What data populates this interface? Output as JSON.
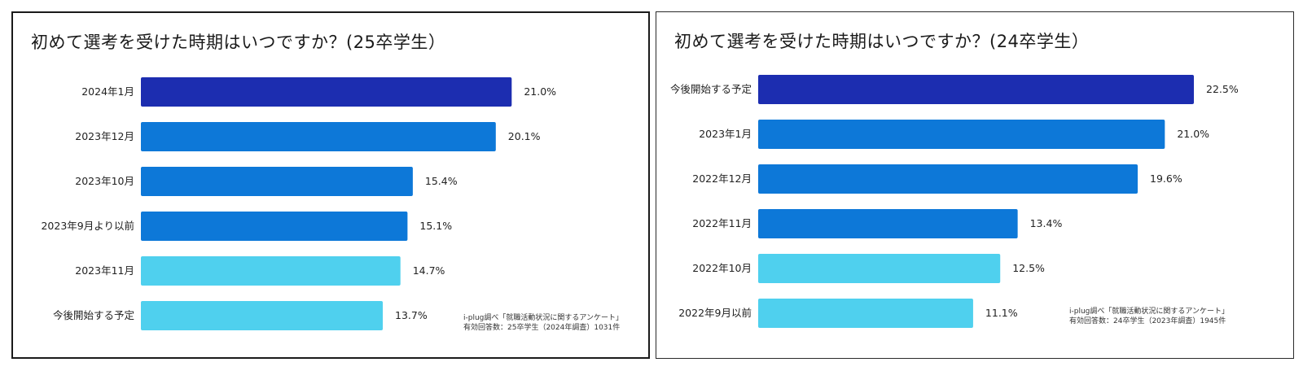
{
  "chart_data": [
    {
      "type": "bar",
      "orientation": "horizontal",
      "title": "初めて選考を受けた時期はいつですか？(25卒学生）",
      "categories": [
        "2024年1月",
        "2023年12月",
        "2023年10月",
        "2023年9月より以前",
        "2023年11月",
        "今後開始する予定"
      ],
      "values": [
        21.0,
        20.1,
        15.4,
        15.1,
        14.7,
        13.7
      ],
      "value_labels": [
        "21.0%",
        "20.1%",
        "15.4%",
        "15.1%",
        "14.7%",
        "13.7%"
      ],
      "bar_colors": [
        "#1c2db0",
        "#0d78d8",
        "#0d78d8",
        "#0d78d8",
        "#4fd0ee",
        "#4fd0ee"
      ],
      "unit": "%",
      "xlim": [
        0,
        22
      ],
      "source_line1": "i-plug調べ「就職活動状況に関するアンケート」",
      "source_line2": "有効回答数：25卒学生（2024年調査）1031件"
    },
    {
      "type": "bar",
      "orientation": "horizontal",
      "title": "初めて選考を受けた時期はいつですか？(24卒学生）",
      "categories": [
        "今後開始する予定",
        "2023年1月",
        "2022年12月",
        "2022年11月",
        "2022年10月",
        "2022年9月以前"
      ],
      "values": [
        22.5,
        21.0,
        19.6,
        13.4,
        12.5,
        11.1
      ],
      "value_labels": [
        "22.5%",
        "21.0%",
        "19.6%",
        "13.4%",
        "12.5%",
        "11.1%"
      ],
      "bar_colors": [
        "#1c2db0",
        "#0d78d8",
        "#0d78d8",
        "#0d78d8",
        "#4fd0ee",
        "#4fd0ee"
      ],
      "unit": "%",
      "xlim": [
        0,
        22.5
      ],
      "source_line1": "i-plug調べ「就職活動状況に関するアンケート」",
      "source_line2": "有効回答数：24卒学生（2023年調査）1945件"
    }
  ]
}
